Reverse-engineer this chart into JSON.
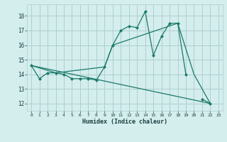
{
  "xlabel": "Humidex (Indice chaleur)",
  "bg_color": "#d4eded",
  "line_color": "#1a7a6a",
  "grid_color": "#aed0d0",
  "xlim": [
    -0.5,
    23.5
  ],
  "ylim": [
    11.5,
    18.8
  ],
  "yticks": [
    12,
    13,
    14,
    15,
    16,
    17,
    18
  ],
  "xticks": [
    0,
    1,
    2,
    3,
    4,
    5,
    6,
    7,
    8,
    9,
    10,
    11,
    12,
    13,
    14,
    15,
    16,
    17,
    18,
    19,
    20,
    21,
    22,
    23
  ],
  "line1_x": [
    0,
    1,
    2,
    3,
    4,
    5,
    6,
    7,
    8,
    9,
    10,
    11,
    12,
    13,
    14,
    15,
    16,
    17,
    18,
    19,
    21,
    22
  ],
  "line1_y": [
    14.6,
    13.7,
    14.1,
    14.1,
    14.0,
    13.7,
    13.7,
    13.7,
    13.6,
    14.5,
    16.0,
    17.0,
    17.3,
    17.2,
    18.3,
    15.3,
    16.6,
    17.5,
    17.5,
    14.0,
    12.3,
    12.0
  ],
  "line1_breaks": [
    19,
    20
  ],
  "line2_x": [
    0,
    3,
    9,
    10,
    18,
    20,
    22
  ],
  "line2_y": [
    14.6,
    14.1,
    14.5,
    16.0,
    17.5,
    14.0,
    12.0
  ],
  "line3_x": [
    0,
    22
  ],
  "line3_y": [
    14.6,
    12.0
  ],
  "markersize": 2.5,
  "linewidth": 0.9
}
